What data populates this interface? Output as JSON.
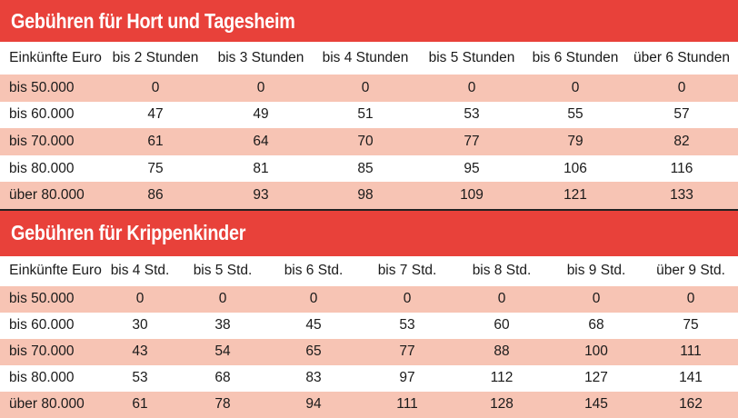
{
  "hort": {
    "title": "Gebühren für Hort und Tagesheim",
    "headers": [
      "Einkünfte Euro",
      "bis 2 Stunden",
      "bis 3 Stunden",
      "bis 4 Stunden",
      "bis 5 Stunden",
      "bis 6 Stunden",
      "über 6 Stunden"
    ],
    "rows": [
      [
        "bis 50.000",
        "0",
        "0",
        "0",
        "0",
        "0",
        "0"
      ],
      [
        "bis 60.000",
        "47",
        "49",
        "51",
        "53",
        "55",
        "57"
      ],
      [
        "bis 70.000",
        "61",
        "64",
        "70",
        "77",
        "79",
        "82"
      ],
      [
        "bis 80.000",
        "75",
        "81",
        "85",
        "95",
        "106",
        "116"
      ],
      [
        "über 80.000",
        "86",
        "93",
        "98",
        "109",
        "121",
        "133"
      ]
    ]
  },
  "krippe": {
    "title": "Gebühren für Krippenkinder",
    "headers": [
      "Einkünfte Euro",
      "bis 4 Std.",
      "bis 5 Std.",
      "bis 6 Std.",
      "bis 7 Std.",
      "bis 8 Std.",
      "bis 9 Std.",
      "über 9 Std."
    ],
    "rows": [
      [
        "bis 50.000",
        "0",
        "0",
        "0",
        "0",
        "0",
        "0",
        "0"
      ],
      [
        "bis 60.000",
        "30",
        "38",
        "45",
        "53",
        "60",
        "68",
        "75"
      ],
      [
        "bis 70.000",
        "43",
        "54",
        "65",
        "77",
        "88",
        "100",
        "111"
      ],
      [
        "bis 80.000",
        "53",
        "68",
        "83",
        "97",
        "112",
        "127",
        "141"
      ],
      [
        "über 80.000",
        "61",
        "78",
        "94",
        "111",
        "128",
        "145",
        "162"
      ]
    ]
  },
  "colors": {
    "title_bar": "#e8413a",
    "row_tint": "#f7c4b4",
    "title_text": "#ffffff"
  }
}
